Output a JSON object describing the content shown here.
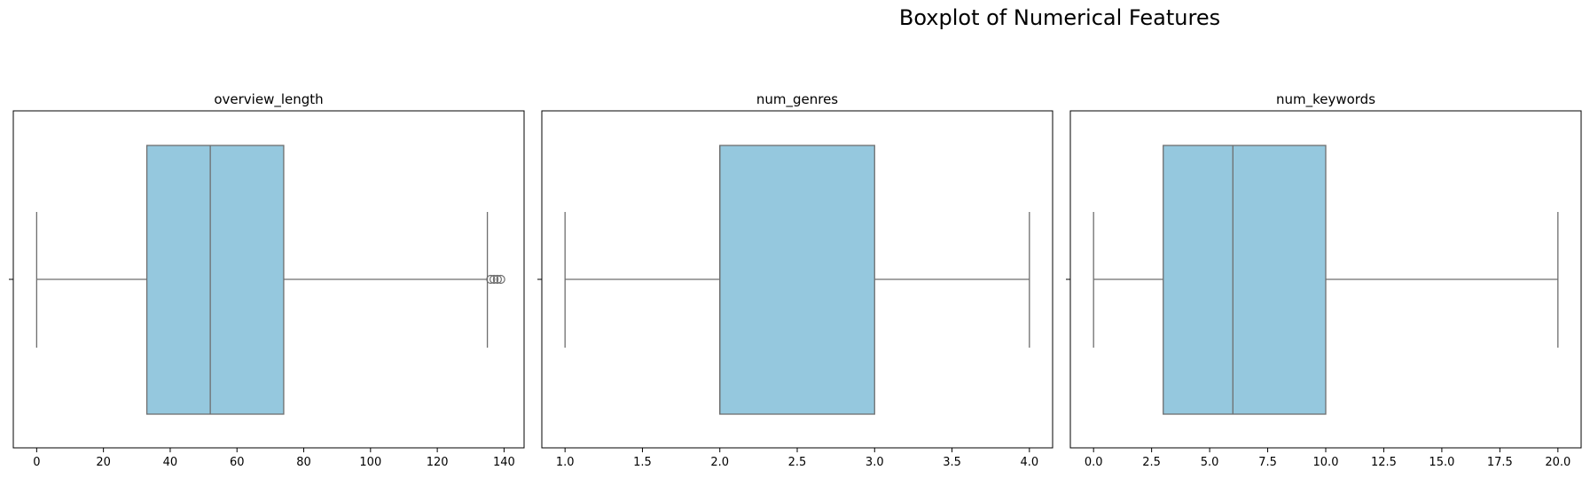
{
  "figure": {
    "suptitle": "Boxplot of Numerical Features"
  },
  "colors": {
    "box_fill": "#95c8de",
    "line": "#6e6e6e",
    "axes": "#000000",
    "background": "#ffffff"
  },
  "chart_data": [
    {
      "type": "box",
      "title": "overview_length",
      "xlim": [
        -7,
        146
      ],
      "ticks": [
        0,
        20,
        40,
        60,
        80,
        100,
        120,
        140
      ],
      "tick_labels": [
        "0",
        "20",
        "40",
        "60",
        "80",
        "100",
        "120",
        "140"
      ],
      "whisker_low": 0,
      "q1": 33,
      "median": 52,
      "q3": 74,
      "whisker_high": 135,
      "outliers": [
        136,
        137,
        138,
        139
      ],
      "grid": false
    },
    {
      "type": "box",
      "title": "num_genres",
      "xlim": [
        0.85,
        4.15
      ],
      "ticks": [
        1.0,
        1.5,
        2.0,
        2.5,
        3.0,
        3.5,
        4.0
      ],
      "tick_labels": [
        "1.0",
        "1.5",
        "2.0",
        "2.5",
        "3.0",
        "3.5",
        "4.0"
      ],
      "whisker_low": 1,
      "q1": 2,
      "median": 2,
      "q3": 3,
      "whisker_high": 4,
      "outliers": [],
      "grid": false
    },
    {
      "type": "box",
      "title": "num_keywords",
      "xlim": [
        -1,
        21
      ],
      "ticks": [
        0,
        2.5,
        5,
        7.5,
        10,
        12.5,
        15,
        17.5,
        20
      ],
      "tick_labels": [
        "0.0",
        "2.5",
        "5.0",
        "7.5",
        "10.0",
        "12.5",
        "15.0",
        "17.5",
        "20.0"
      ],
      "whisker_low": 0,
      "q1": 3,
      "median": 6,
      "q3": 10,
      "whisker_high": 20,
      "outliers": [],
      "grid": false
    }
  ]
}
